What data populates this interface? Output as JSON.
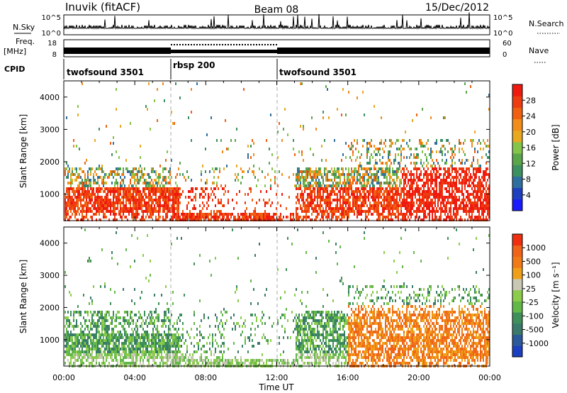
{
  "header": {
    "station": "Inuvik (fitACF)",
    "beam": "Beam 08",
    "date": "15/Dec/2012"
  },
  "noise_panel": {
    "label_left": "N.Sky",
    "label_right": "N.Search",
    "tick_hi": "10^5",
    "tick_lo": "10^0"
  },
  "freq_panel": {
    "label_line1": "Freq.",
    "label_line2": "[MHz]",
    "left_ticks": [
      "18",
      "8"
    ],
    "right_ticks": [
      "60",
      "0"
    ],
    "right_label": "Nave"
  },
  "cpid_panel": {
    "label": "CPID",
    "segments": [
      {
        "name": "twofsound 3501",
        "start_hr": 0,
        "end_hr": 6
      },
      {
        "name": "rbsp 200",
        "start_hr": 6,
        "end_hr": 12
      },
      {
        "name": "twofsound 3501",
        "start_hr": 12,
        "end_hr": 24
      }
    ]
  },
  "time_axis": {
    "ticks": [
      "00:00",
      "04:00",
      "08:00",
      "12:00",
      "16:00",
      "20:00",
      "00:00"
    ],
    "label": "Time UT"
  },
  "colors": {
    "power_scale": [
      "#1a1aff",
      "#1e3fc0",
      "#2f6fa0",
      "#3d9060",
      "#5aa64a",
      "#84c44a",
      "#e8a820",
      "#f28c1a",
      "#f06010",
      "#ef3b10",
      "#ee1a10"
    ],
    "velocity_scale": [
      "#1a3fc0",
      "#2a5a9a",
      "#3a7a6a",
      "#3f8f5a",
      "#63b84a",
      "#8ccc4a",
      "#c8c8b4",
      "#f0a018",
      "#f07a18",
      "#f06418",
      "#ee3010"
    ]
  },
  "chart_data": [
    {
      "type": "heatmap",
      "title": "Power",
      "ylabel": "Slant Range [km]",
      "xlabel": "",
      "colorbar_label": "Power [dB]",
      "colorbar_ticks": [
        "28",
        "24",
        "20",
        "16",
        "12",
        "8",
        "4"
      ],
      "xlim_hours": [
        0,
        24
      ],
      "ylim_km": [
        180,
        4500
      ],
      "y_ticks": [
        "4000",
        "3000",
        "2000",
        "1000"
      ],
      "dashed_markers_hr": [
        6,
        12
      ]
    },
    {
      "type": "heatmap",
      "title": "Velocity",
      "ylabel": "Slant Range [km]",
      "xlabel": "Time UT",
      "colorbar_label": "Velocity [m s⁻¹]",
      "colorbar_ticks": [
        "1000",
        "500",
        "100",
        "25",
        "-25",
        "-100",
        "-500",
        "-1000"
      ],
      "xlim_hours": [
        0,
        24
      ],
      "ylim_km": [
        180,
        4500
      ],
      "y_ticks": [
        "4000",
        "3000",
        "2000",
        "1000"
      ],
      "dashed_markers_hr": [
        6,
        12
      ]
    }
  ]
}
